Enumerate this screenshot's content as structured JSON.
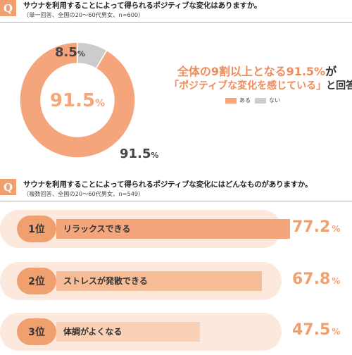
{
  "q1": {
    "badge": "Q",
    "title": "サウナを利用することによって得られるポジティブな変化はありますか。",
    "subtitle": "（単一回答、全国の20〜60代男女、n=600）"
  },
  "callout": {
    "line1_a": "全体の",
    "line1_b": "9割以上",
    "line1_c": "となる",
    "line1_d": "91.5%",
    "line1_e": "が",
    "line2_a": "「ポジティブな変化を感じている」",
    "line2_b": "と回答"
  },
  "q2": {
    "badge": "Q",
    "title": "サウナを利用することによって得られるポジティブな変化にはどんなものがありますか。",
    "subtitle": "（複数回答、全国の20〜60代男女、n=549）"
  },
  "chart_data": [
    {
      "type": "pie",
      "donut": true,
      "categories": [
        "ある",
        "ない"
      ],
      "values": [
        91.5,
        8.5
      ],
      "center_label": "91.5%",
      "outer_labels": [
        "91.5%",
        "8.5%"
      ],
      "legend": [
        "ある",
        "ない"
      ],
      "legend_position": "bottom-right",
      "colors": [
        "#f4a57b",
        "#cccccc"
      ]
    },
    {
      "type": "bar",
      "orientation": "horizontal",
      "ranks": [
        "1位",
        "2位",
        "3位"
      ],
      "categories": [
        "リラックスできる",
        "ストレスが発散できる",
        "体調がよくなる"
      ],
      "values": [
        77.2,
        67.8,
        47.5
      ],
      "value_labels": [
        "77.2",
        "67.8",
        "47.5"
      ],
      "unit": "%",
      "xlim": [
        0,
        100
      ],
      "colors": [
        "#f4a57b",
        "#f7bd97",
        "#f9d1b6"
      ]
    }
  ]
}
